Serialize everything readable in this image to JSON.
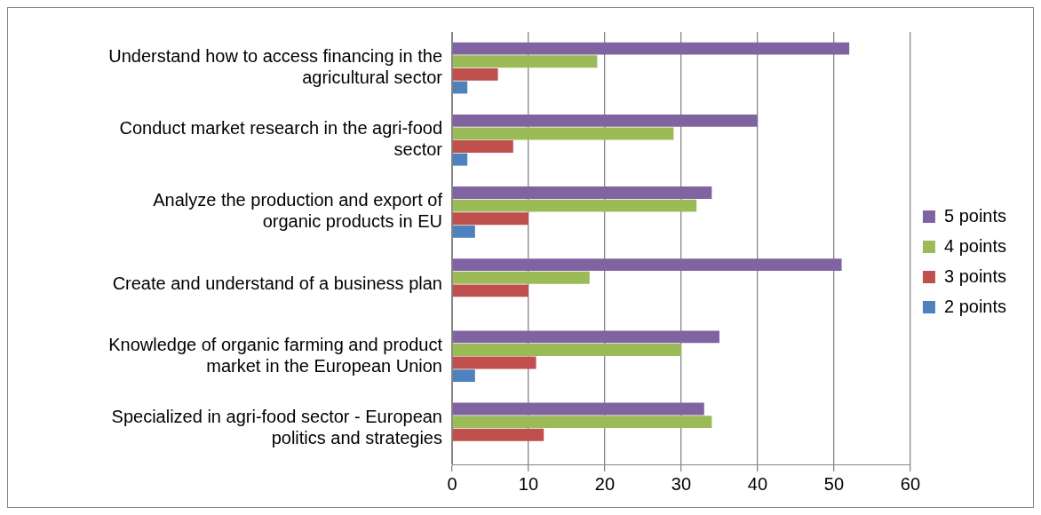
{
  "chart_data": {
    "type": "bar",
    "orientation": "horizontal",
    "categories": [
      "Understand how to access financing in the agricultural sector",
      "Conduct market research in the agri-food sector",
      "Analyze the production and export of organic products in EU",
      "Create and understand of a business plan",
      "Knowledge of organic farming and product market in the European Union",
      "Specialized in agri-food sector - European politics and strategies"
    ],
    "series": [
      {
        "name": "5 points",
        "color": "#8064a2",
        "values": [
          52,
          40,
          34,
          51,
          35,
          33
        ]
      },
      {
        "name": "4 points",
        "color": "#9bbb59",
        "values": [
          19,
          29,
          32,
          18,
          30,
          34
        ]
      },
      {
        "name": "3 points",
        "color": "#c0504d",
        "values": [
          6,
          8,
          10,
          10,
          11,
          12
        ]
      },
      {
        "name": "2 points",
        "color": "#4f81bd",
        "values": [
          2,
          2,
          3,
          null,
          3,
          null
        ]
      }
    ],
    "xlim": [
      0,
      60
    ],
    "xticks": [
      0,
      10,
      20,
      30,
      40,
      50,
      60
    ],
    "grid": "x",
    "legend": "right"
  }
}
